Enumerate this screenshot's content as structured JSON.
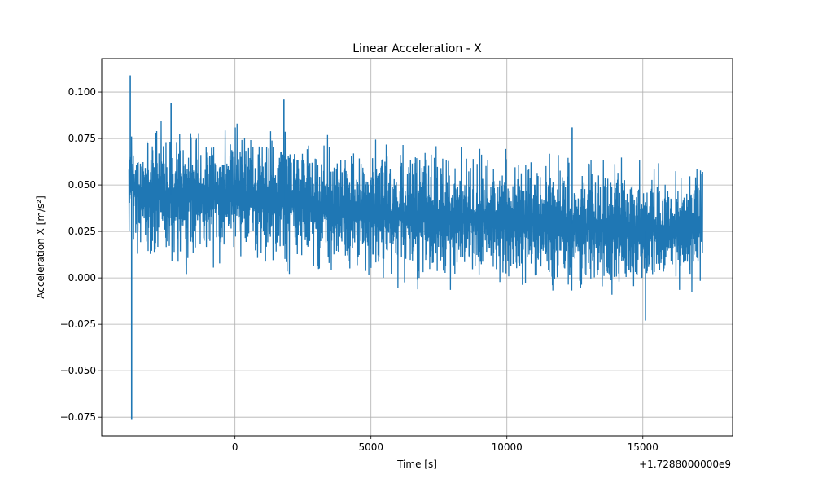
{
  "chart_data": {
    "type": "line",
    "title": "Linear Acceleration - X",
    "xlabel": "Time [s]",
    "ylabel": "Acceleration X [m/s²]",
    "x_offset_label": "+1.7288000000e9",
    "xlim": [
      -4900,
      18300
    ],
    "ylim": [
      -0.085,
      0.118
    ],
    "x_ticks": [
      0,
      5000,
      10000,
      15000
    ],
    "x_tick_labels": [
      "0",
      "5000",
      "10000",
      "15000"
    ],
    "y_ticks": [
      -0.075,
      -0.05,
      -0.025,
      0.0,
      0.025,
      0.05,
      0.075,
      0.1
    ],
    "y_tick_labels": [
      "−0.075",
      "−0.050",
      "−0.025",
      "0.000",
      "0.025",
      "0.050",
      "0.075",
      "0.100"
    ],
    "grid": true,
    "series": [
      {
        "color": "#1f77b4",
        "x_range": [
          -3900,
          17200
        ],
        "envelope_x": [
          -3900,
          -3500,
          -2000,
          0,
          2000,
          4000,
          5000,
          7000,
          9000,
          11000,
          13000,
          15000,
          17200
        ],
        "upper": [
          0.105,
          0.088,
          0.086,
          0.087,
          0.085,
          0.081,
          0.08,
          0.077,
          0.075,
          0.074,
          0.072,
          0.068,
          0.066
        ],
        "lower": [
          0.005,
          0.003,
          0.002,
          0.001,
          -0.002,
          -0.007,
          -0.01,
          -0.011,
          -0.012,
          -0.013,
          -0.015,
          -0.017,
          -0.01
        ],
        "spikes": [
          {
            "x": -3850,
            "y": 0.109
          },
          {
            "x": -3800,
            "y": -0.076
          },
          {
            "x": -2350,
            "y": 0.094
          },
          {
            "x": 1800,
            "y": 0.096
          },
          {
            "x": 12400,
            "y": 0.081
          },
          {
            "x": 15100,
            "y": -0.023
          }
        ]
      }
    ]
  }
}
